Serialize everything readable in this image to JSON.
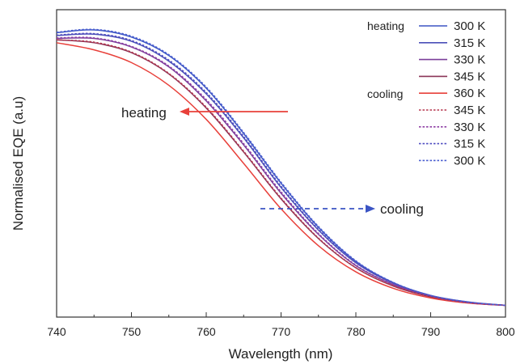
{
  "chart_data": {
    "type": "line",
    "xlabel": "Wavelength (nm)",
    "ylabel": "Normalised EQE (a.u)",
    "xlim": [
      740,
      800
    ],
    "x_ticks": [
      "740",
      "750",
      "760",
      "770",
      "780",
      "790",
      "800"
    ],
    "y_tick_labels": false,
    "grid": false,
    "legend": {
      "placement": "top-right",
      "group_heating_label": "heating",
      "group_cooling_label": "cooling"
    },
    "x": [
      740,
      745,
      750,
      755,
      760,
      765,
      770,
      775,
      780,
      785,
      790,
      795,
      800
    ],
    "series": [
      {
        "name": "300 K",
        "group": "heating",
        "color": "#3b54c4",
        "dashed": false,
        "values": [
          0.97,
          0.98,
          0.955,
          0.89,
          0.775,
          0.615,
          0.44,
          0.285,
          0.165,
          0.09,
          0.045,
          0.022,
          0.01
        ]
      },
      {
        "name": "315 K",
        "group": "heating",
        "color": "#4a4fb8",
        "dashed": false,
        "values": [
          0.96,
          0.965,
          0.94,
          0.87,
          0.755,
          0.6,
          0.425,
          0.275,
          0.16,
          0.088,
          0.044,
          0.021,
          0.01
        ]
      },
      {
        "name": "330 K",
        "group": "heating",
        "color": "#7b3f9a",
        "dashed": false,
        "values": [
          0.95,
          0.95,
          0.92,
          0.85,
          0.73,
          0.575,
          0.405,
          0.26,
          0.15,
          0.083,
          0.042,
          0.02,
          0.01
        ]
      },
      {
        "name": "345 K",
        "group": "heating",
        "color": "#8b3557",
        "dashed": false,
        "values": [
          0.945,
          0.935,
          0.9,
          0.825,
          0.705,
          0.55,
          0.385,
          0.245,
          0.142,
          0.078,
          0.04,
          0.019,
          0.01
        ]
      },
      {
        "name": "360 K",
        "group": "cooling",
        "color": "#e8403a",
        "dashed": false,
        "values": [
          0.935,
          0.91,
          0.865,
          0.785,
          0.665,
          0.51,
          0.35,
          0.22,
          0.128,
          0.07,
          0.036,
          0.018,
          0.01
        ]
      },
      {
        "name": "345 K",
        "group": "cooling",
        "color": "#b5364f",
        "dashed": true,
        "values": [
          0.945,
          0.937,
          0.902,
          0.827,
          0.708,
          0.553,
          0.388,
          0.247,
          0.143,
          0.079,
          0.04,
          0.019,
          0.01
        ]
      },
      {
        "name": "330 K",
        "group": "cooling",
        "color": "#8e3fa4",
        "dashed": true,
        "values": [
          0.952,
          0.952,
          0.922,
          0.853,
          0.735,
          0.58,
          0.41,
          0.263,
          0.152,
          0.084,
          0.043,
          0.02,
          0.01
        ]
      },
      {
        "name": "315 K",
        "group": "cooling",
        "color": "#4f4cc0",
        "dashed": true,
        "values": [
          0.962,
          0.967,
          0.943,
          0.874,
          0.76,
          0.605,
          0.43,
          0.278,
          0.162,
          0.089,
          0.044,
          0.021,
          0.01
        ]
      },
      {
        "name": "300 K",
        "group": "cooling",
        "color": "#4a5ed0",
        "dashed": true,
        "values": [
          0.972,
          0.982,
          0.958,
          0.893,
          0.779,
          0.619,
          0.444,
          0.288,
          0.167,
          0.091,
          0.045,
          0.022,
          0.01
        ]
      }
    ],
    "annotations": [
      {
        "text": "heating",
        "color": "#e8403a",
        "direction": "left",
        "dashed": false
      },
      {
        "text": "cooling",
        "color": "#3b54c4",
        "direction": "right",
        "dashed": true
      }
    ]
  }
}
